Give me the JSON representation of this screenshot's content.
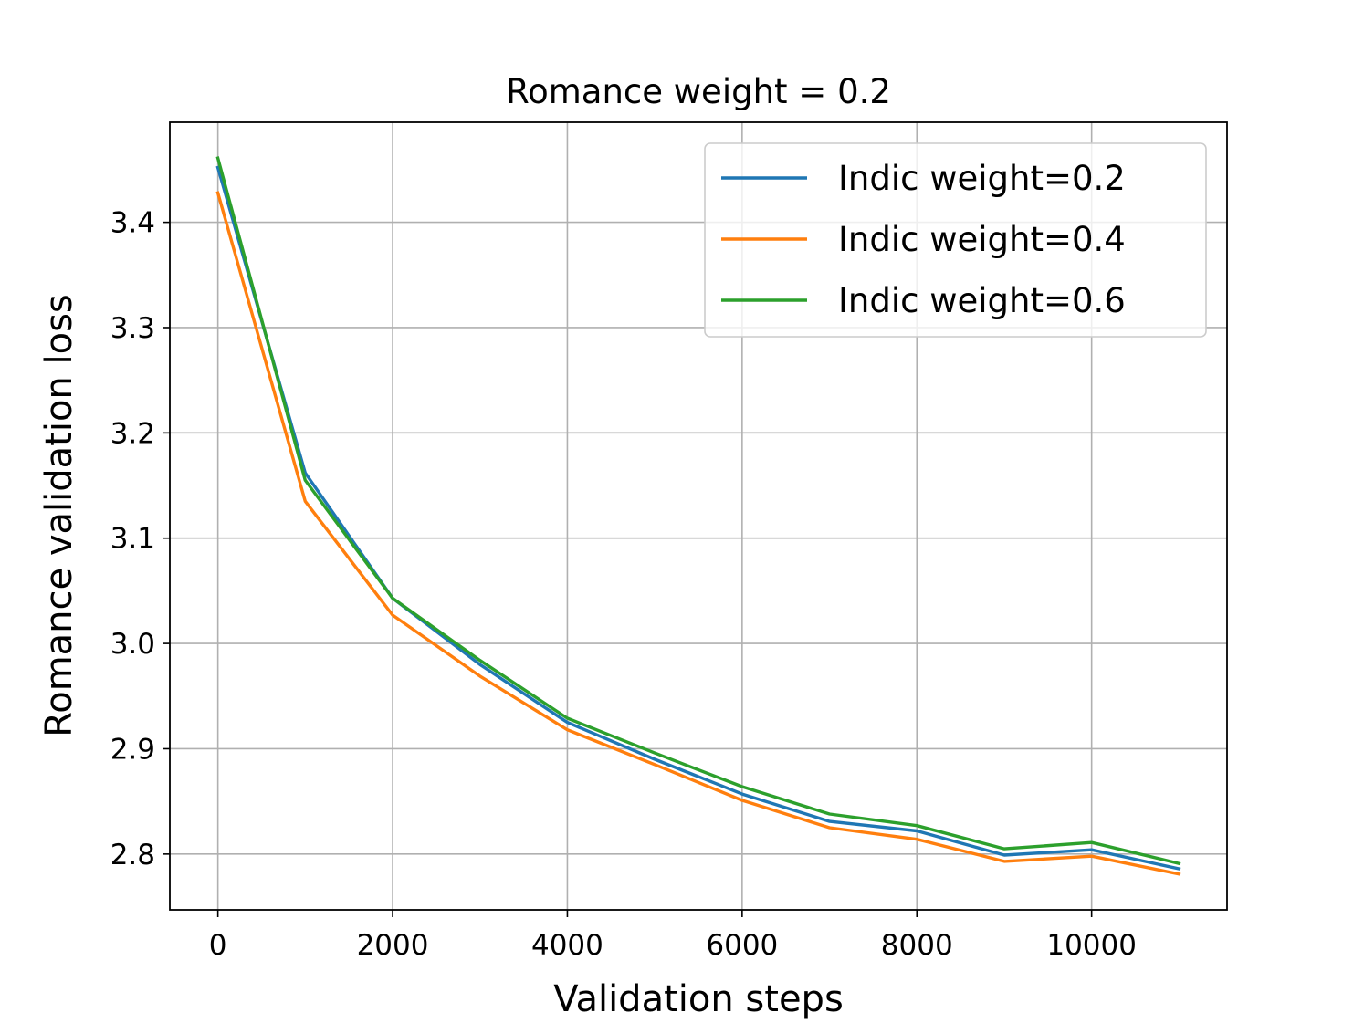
{
  "chart_data": {
    "type": "line",
    "title": "Romance weight = 0.2",
    "xlabel": "Validation steps",
    "ylabel": "Romance validation loss",
    "x": [
      0,
      1000,
      2000,
      3000,
      4000,
      5000,
      6000,
      7000,
      8000,
      9000,
      10000,
      11000
    ],
    "xlim": [
      -550,
      11550
    ],
    "ylim": [
      2.747,
      3.495
    ],
    "xticks": [
      0,
      2000,
      4000,
      6000,
      8000,
      10000
    ],
    "xtick_labels": [
      "0",
      "2000",
      "4000",
      "6000",
      "8000",
      "10000"
    ],
    "yticks": [
      2.8,
      2.9,
      3.0,
      3.1,
      3.2,
      3.3,
      3.4
    ],
    "ytick_labels": [
      "2.8",
      "2.9",
      "3.0",
      "3.1",
      "3.2",
      "3.3",
      "3.4"
    ],
    "grid": true,
    "legend_position": "top-right",
    "series": [
      {
        "name": "Indic weight=0.2",
        "color": "#1f77b4",
        "values": [
          3.452,
          3.162,
          3.043,
          2.98,
          2.925,
          2.89,
          2.857,
          2.831,
          2.822,
          2.799,
          2.804,
          2.786
        ]
      },
      {
        "name": "Indic weight=0.4",
        "color": "#ff7f0e",
        "values": [
          3.428,
          3.135,
          3.027,
          2.969,
          2.918,
          2.885,
          2.851,
          2.825,
          2.814,
          2.793,
          2.798,
          2.781
        ]
      },
      {
        "name": "Indic weight=0.6",
        "color": "#2ca02c",
        "values": [
          3.461,
          3.155,
          3.043,
          2.984,
          2.929,
          2.896,
          2.864,
          2.838,
          2.827,
          2.805,
          2.811,
          2.791
        ]
      }
    ]
  }
}
